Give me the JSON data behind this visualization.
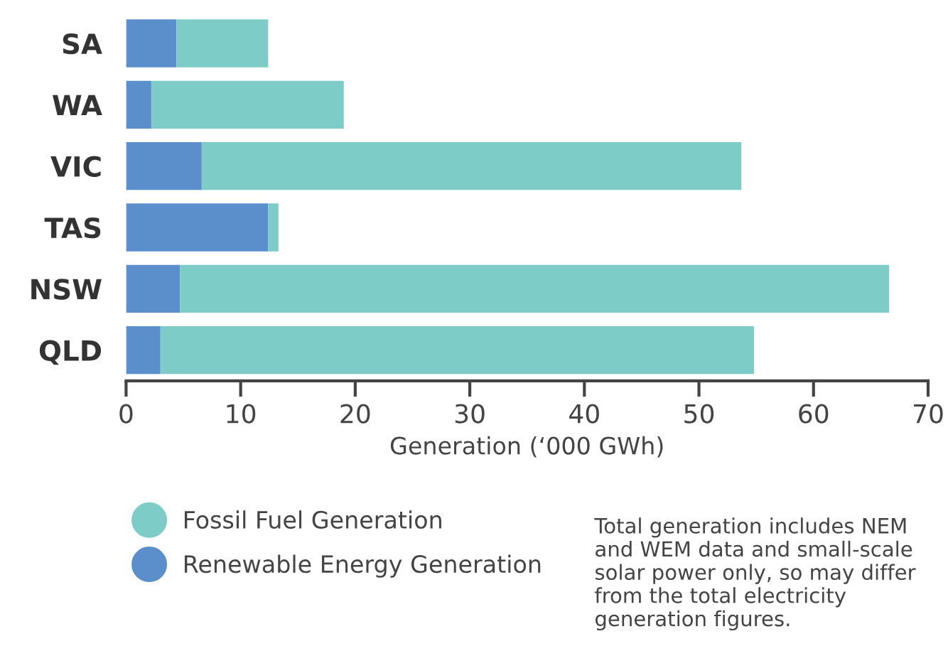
{
  "chart_data": {
    "type": "bar",
    "orientation": "horizontal",
    "stacked": true,
    "categories": [
      "SA",
      "WA",
      "VIC",
      "TAS",
      "NSW",
      "QLD"
    ],
    "series": [
      {
        "name": "Renewable Energy Generation",
        "color": "#5b8fcc",
        "values": [
          4.4,
          2.2,
          6.6,
          12.4,
          4.7,
          3.0
        ]
      },
      {
        "name": "Fossil Fuel Generation",
        "color": "#7dccc7",
        "values": [
          8.0,
          16.8,
          47.1,
          0.9,
          61.9,
          51.8
        ]
      }
    ],
    "xlabel": "Generation (‘000 GWh)",
    "xlim": [
      0,
      70
    ],
    "xticks": [
      0,
      10,
      20,
      30,
      40,
      50,
      60,
      70
    ],
    "grid": false,
    "legend": "bottom left",
    "annotations": [
      "Total generation includes NEM and WEM data and small-scale solar power only, so may differ from the total electricity generation figures."
    ]
  }
}
